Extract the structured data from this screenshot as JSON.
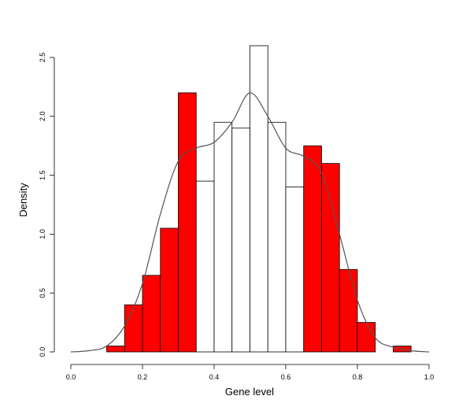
{
  "chart_data": {
    "type": "bar",
    "subtype": "histogram-with-density-curve",
    "xlabel": "Gene level",
    "ylabel": "Density",
    "xlim": [
      0.0,
      1.0
    ],
    "ylim": [
      0.0,
      2.6
    ],
    "x_ticks": [
      "0.0",
      "0.2",
      "0.4",
      "0.6",
      "0.8",
      "1.0"
    ],
    "y_ticks": [
      "0.0",
      "0.5",
      "1.0",
      "1.5",
      "2.0",
      "2.5"
    ],
    "bin_width": 0.05,
    "bins": [
      {
        "start": 0.1,
        "value": 0.05,
        "highlighted": true
      },
      {
        "start": 0.15,
        "value": 0.4,
        "highlighted": true
      },
      {
        "start": 0.2,
        "value": 0.65,
        "highlighted": true
      },
      {
        "start": 0.25,
        "value": 1.05,
        "highlighted": true
      },
      {
        "start": 0.3,
        "value": 2.2,
        "highlighted": true
      },
      {
        "start": 0.35,
        "value": 1.45,
        "highlighted": false
      },
      {
        "start": 0.4,
        "value": 1.95,
        "highlighted": false
      },
      {
        "start": 0.45,
        "value": 1.9,
        "highlighted": false
      },
      {
        "start": 0.5,
        "value": 2.6,
        "highlighted": false
      },
      {
        "start": 0.55,
        "value": 1.95,
        "highlighted": false
      },
      {
        "start": 0.6,
        "value": 1.4,
        "highlighted": false
      },
      {
        "start": 0.65,
        "value": 1.75,
        "highlighted": true
      },
      {
        "start": 0.7,
        "value": 1.6,
        "highlighted": true
      },
      {
        "start": 0.75,
        "value": 0.7,
        "highlighted": true
      },
      {
        "start": 0.8,
        "value": 0.25,
        "highlighted": true
      },
      {
        "start": 0.9,
        "value": 0.05,
        "highlighted": true
      }
    ],
    "density_curve": [
      [
        0.0,
        0.0
      ],
      [
        0.05,
        0.01
      ],
      [
        0.1,
        0.05
      ],
      [
        0.15,
        0.22
      ],
      [
        0.2,
        0.58
      ],
      [
        0.25,
        1.17
      ],
      [
        0.3,
        1.62
      ],
      [
        0.35,
        1.73
      ],
      [
        0.4,
        1.78
      ],
      [
        0.45,
        1.95
      ],
      [
        0.5,
        2.2
      ],
      [
        0.55,
        2.0
      ],
      [
        0.6,
        1.73
      ],
      [
        0.65,
        1.66
      ],
      [
        0.7,
        1.52
      ],
      [
        0.75,
        1.0
      ],
      [
        0.8,
        0.44
      ],
      [
        0.85,
        0.12
      ],
      [
        0.9,
        0.04
      ],
      [
        0.95,
        0.01
      ],
      [
        1.0,
        0.0
      ]
    ],
    "colors": {
      "highlight": "#ff0000",
      "plain": "#ffffff",
      "outline": "#000000",
      "curve": "#555555"
    }
  }
}
